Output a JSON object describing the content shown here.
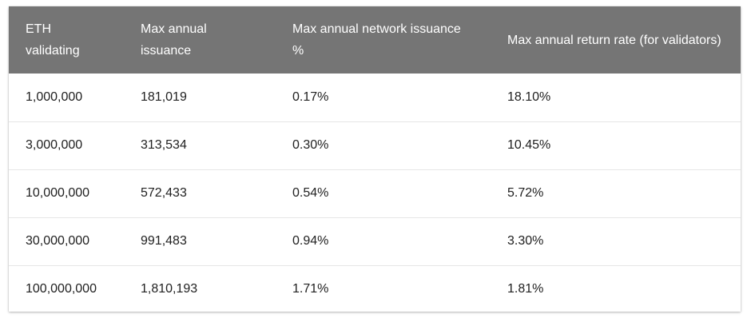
{
  "table": {
    "headers": [
      "ETH validating",
      "Max annual issuance",
      "Max annual network issuance %",
      "Max annual return rate (for validators)"
    ],
    "rows": [
      [
        "1,000,000",
        "181,019",
        "0.17%",
        "18.10%"
      ],
      [
        "3,000,000",
        "313,534",
        "0.30%",
        "10.45%"
      ],
      [
        "10,000,000",
        "572,433",
        "0.54%",
        "5.72%"
      ],
      [
        "30,000,000",
        "991,483",
        "0.94%",
        "3.30%"
      ],
      [
        "100,000,000",
        "1,810,193",
        "1.71%",
        "1.81%"
      ]
    ]
  },
  "colors": {
    "header_bg": "#757575",
    "header_text": "#ffffff",
    "row_divider": "#e6e6e6"
  }
}
